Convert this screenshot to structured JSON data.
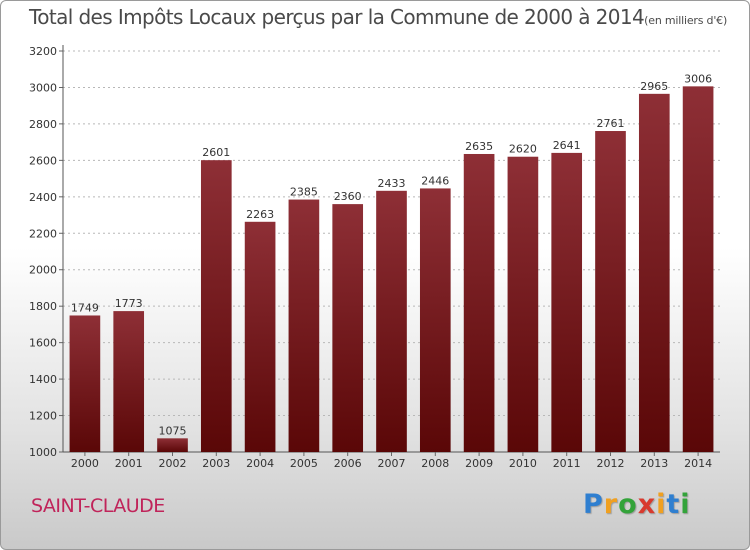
{
  "chart_data": {
    "type": "bar",
    "title": "Total des Impôts Locaux perçus par la Commune de 2000 à 2014",
    "title_unit": "(en milliers d'€)",
    "categories": [
      "2000",
      "2001",
      "2002",
      "2003",
      "2004",
      "2005",
      "2006",
      "2007",
      "2008",
      "2009",
      "2010",
      "2011",
      "2012",
      "2013",
      "2014"
    ],
    "values": [
      1749,
      1773,
      1075,
      2601,
      2263,
      2385,
      2360,
      2433,
      2446,
      2635,
      2620,
      2641,
      2761,
      2965,
      3006
    ],
    "data_labels": [
      "1749",
      "1773",
      "1075",
      "2601",
      "2263",
      "2385",
      "2360",
      "2433",
      "2446",
      "2635",
      "2620",
      "2641",
      "2761",
      "2965",
      "3006"
    ],
    "yticks": [
      1000,
      1200,
      1400,
      1600,
      1800,
      2000,
      2200,
      2400,
      2600,
      2800,
      3000,
      3200
    ],
    "ylim": [
      1000,
      3200
    ],
    "grid": true,
    "bar_color": "#7a1a1f"
  },
  "footer": {
    "city": "SAINT-CLAUDE"
  },
  "logo": {
    "letters": [
      {
        "ch": "P",
        "color": "#2f7fd0"
      },
      {
        "ch": "r",
        "color": "#f0a020"
      },
      {
        "ch": "o",
        "color": "#33a33a"
      },
      {
        "ch": "x",
        "color": "#d83a2e"
      },
      {
        "ch": "i",
        "color": "#f0a020"
      },
      {
        "ch": "t",
        "color": "#2f7fd0"
      },
      {
        "ch": "i",
        "color": "#33a33a"
      }
    ]
  }
}
